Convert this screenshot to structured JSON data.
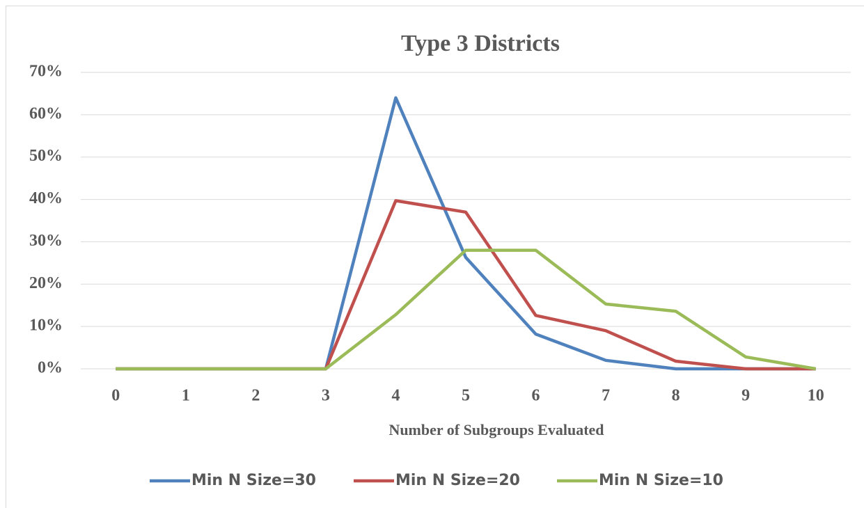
{
  "chart_data": {
    "type": "line",
    "title": "Type 3 Districts",
    "x_label": "Number of Subgroups Evaluated",
    "categories": [
      "0",
      "1",
      "2",
      "3",
      "4",
      "5",
      "6",
      "7",
      "8",
      "9",
      "10"
    ],
    "series": [
      {
        "name": "Min N Size=30",
        "color": "#4f81bd",
        "values": [
          0,
          0,
          0,
          0,
          64,
          26.3,
          8.2,
          2,
          0,
          0,
          0
        ]
      },
      {
        "name": "Min N Size=20",
        "color": "#c0504d",
        "values": [
          0,
          0,
          0,
          0,
          39.7,
          37,
          12.6,
          9,
          1.8,
          0,
          0
        ]
      },
      {
        "name": "Min N Size=10",
        "color": "#9bbb59",
        "values": [
          0,
          0,
          0,
          0,
          12.8,
          28,
          28,
          15.3,
          13.6,
          2.8,
          0
        ]
      }
    ],
    "ylim": [
      0,
      70
    ],
    "yticks": [
      {
        "value": 0,
        "label": "0%"
      },
      {
        "value": 10,
        "label": "10%"
      },
      {
        "value": 20,
        "label": "20%"
      },
      {
        "value": 30,
        "label": "30%"
      },
      {
        "value": 40,
        "label": "40%"
      },
      {
        "value": 50,
        "label": "50%"
      },
      {
        "value": 60,
        "label": "60%"
      },
      {
        "value": 70,
        "label": "70%"
      }
    ],
    "grid": true,
    "legend": "bottom"
  }
}
